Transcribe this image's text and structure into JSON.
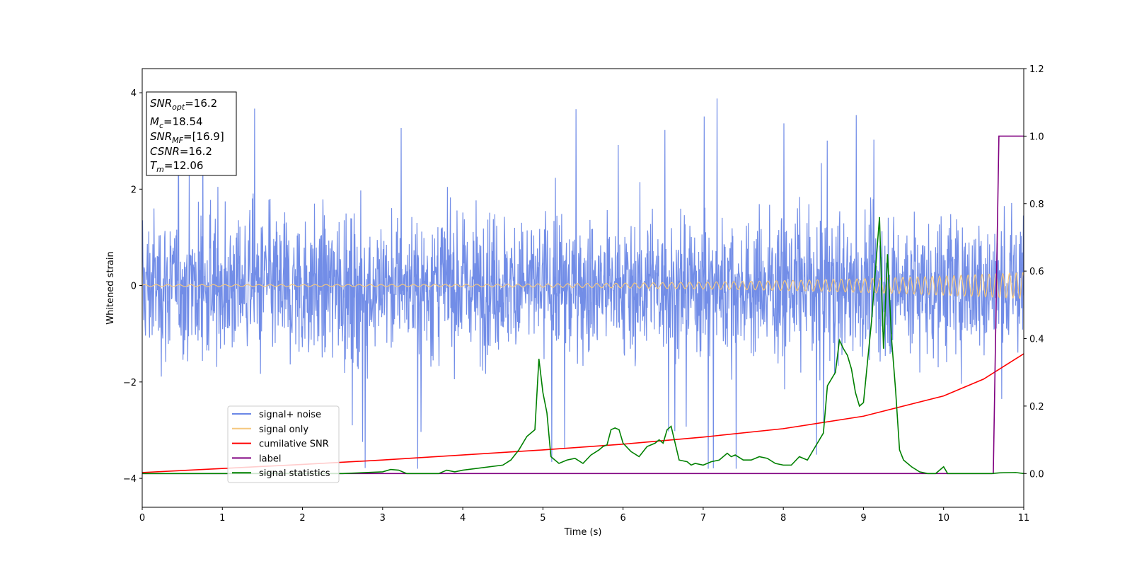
{
  "chart_data": {
    "type": "line",
    "xlabel": "Time (s)",
    "ylabel": "Whitened strain",
    "xlim": [
      0,
      11
    ],
    "ylim": [
      -4.6,
      4.5
    ],
    "ylim_right": [
      -0.1,
      1.2
    ],
    "x_ticks": [
      0,
      1,
      2,
      3,
      4,
      5,
      6,
      7,
      8,
      9,
      10,
      11
    ],
    "y_ticks": [
      -4,
      -2,
      0,
      2,
      4
    ],
    "y_ticks_right": [
      0.0,
      0.2,
      0.4,
      0.6,
      0.8,
      1.0,
      1.2
    ],
    "y_tick_labels_right": [
      "0.0",
      "0.2",
      "0.4",
      "0.6",
      "0.8",
      "1.0",
      "1.2"
    ],
    "grid": false,
    "legend_position": "lower-left",
    "annotation_box": [
      {
        "base": "SNR",
        "sub": "opt",
        "value": "=16.2"
      },
      {
        "base": "M",
        "sub": "c",
        "value": "=18.54"
      },
      {
        "base": "SNR",
        "sub": "MF",
        "value": "=[16.9]"
      },
      {
        "base": "CSNR",
        "sub": "",
        "value": "=16.2"
      },
      {
        "base": "T",
        "sub": "m",
        "value": "=12.06"
      }
    ],
    "series": [
      {
        "name": "signal+ noise",
        "axis": "left",
        "color": "#6a87e6",
        "note": "whitened noisy strain, approx. gaussian, peaks about -3.7 to 4.1",
        "envelope": {
          "typical_max": 2.5,
          "typical_min": -2.5,
          "peak_max": 4.1,
          "peak_min": -3.8
        }
      },
      {
        "name": "signal only",
        "axis": "left",
        "color": "#f5c77e",
        "note": "chirp, amplitude growing to about 0.27 at 11 s",
        "amplitude_start": 0.02,
        "amplitude_end": 0.27
      },
      {
        "name": "cumilative SNR",
        "axis": "right",
        "color": "#ff0000",
        "x": [
          0,
          1,
          2,
          3,
          4,
          5,
          6,
          7,
          8,
          9,
          10,
          10.5,
          11
        ],
        "y": [
          0.003,
          0.015,
          0.027,
          0.04,
          0.055,
          0.07,
          0.087,
          0.108,
          0.133,
          0.17,
          0.23,
          0.28,
          0.355
        ]
      },
      {
        "name": "label",
        "axis": "right",
        "color": "#800080",
        "x": [
          0,
          10.62,
          10.69,
          11
        ],
        "y": [
          0.0,
          0.0,
          1.0,
          1.0
        ]
      },
      {
        "name": "signal statistics",
        "axis": "right",
        "color": "#008000",
        "x": [
          0,
          1,
          2,
          2.5,
          3,
          3.1,
          3.2,
          3.3,
          3.7,
          3.8,
          3.9,
          4.0,
          4.5,
          4.6,
          4.7,
          4.8,
          4.85,
          4.9,
          4.95,
          5.0,
          5.05,
          5.1,
          5.2,
          5.3,
          5.4,
          5.5,
          5.6,
          5.7,
          5.75,
          5.8,
          5.85,
          5.9,
          5.95,
          6.0,
          6.1,
          6.2,
          6.3,
          6.4,
          6.45,
          6.5,
          6.55,
          6.6,
          6.7,
          6.8,
          6.85,
          6.9,
          7.0,
          7.1,
          7.2,
          7.3,
          7.35,
          7.4,
          7.5,
          7.6,
          7.7,
          7.8,
          7.9,
          8.0,
          8.1,
          8.2,
          8.3,
          8.4,
          8.5,
          8.55,
          8.6,
          8.65,
          8.7,
          8.75,
          8.8,
          8.85,
          8.9,
          8.95,
          9.0,
          9.1,
          9.2,
          9.25,
          9.3,
          9.35,
          9.4,
          9.45,
          9.5,
          9.6,
          9.7,
          9.8,
          9.9,
          10.0,
          10.05,
          10.1,
          10.6,
          10.7,
          10.9,
          11
        ],
        "y": [
          0.0,
          0.0,
          0.0,
          0.0,
          0.005,
          0.012,
          0.01,
          0.0,
          0.0,
          0.01,
          0.005,
          0.01,
          0.025,
          0.04,
          0.07,
          0.11,
          0.12,
          0.13,
          0.34,
          0.24,
          0.18,
          0.05,
          0.03,
          0.04,
          0.045,
          0.03,
          0.055,
          0.07,
          0.08,
          0.085,
          0.13,
          0.135,
          0.13,
          0.09,
          0.065,
          0.05,
          0.08,
          0.09,
          0.1,
          0.09,
          0.13,
          0.14,
          0.04,
          0.035,
          0.025,
          0.03,
          0.025,
          0.035,
          0.04,
          0.06,
          0.05,
          0.055,
          0.04,
          0.04,
          0.05,
          0.045,
          0.03,
          0.025,
          0.025,
          0.05,
          0.04,
          0.08,
          0.12,
          0.26,
          0.28,
          0.3,
          0.395,
          0.37,
          0.35,
          0.31,
          0.24,
          0.2,
          0.21,
          0.45,
          0.76,
          0.37,
          0.65,
          0.4,
          0.25,
          0.07,
          0.04,
          0.02,
          0.005,
          0.0,
          0.0,
          0.02,
          0.0,
          0.0,
          0.0,
          0.002,
          0.003,
          0.0
        ]
      }
    ]
  }
}
